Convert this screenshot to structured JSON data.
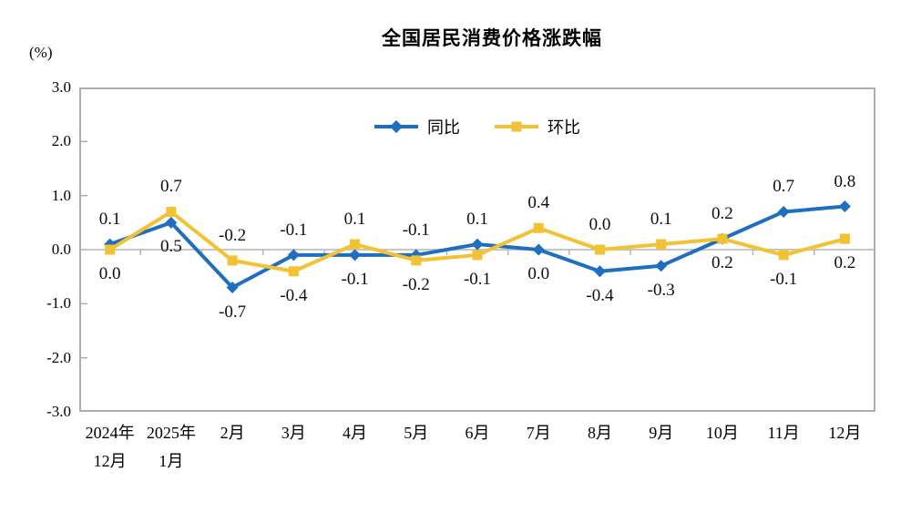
{
  "colors": {
    "yoy_blue": "#1F6FC0",
    "mom_yellow": "#F2C233",
    "plot_border": "#ADADAD",
    "zero_line": "#C7C7C7",
    "tick": "#B5B5B5",
    "label_text": "#0d0d0d"
  },
  "chart_data": {
    "type": "line",
    "title": "全国居民消费价格涨跌幅",
    "ylabel": "(%)",
    "xlabel": "",
    "ylim": [
      -3.0,
      3.0
    ],
    "ytick_labels": [
      "3.0",
      "2.0",
      "1.0",
      "0.0",
      "-1.0",
      "-2.0",
      "-3.0"
    ],
    "ytick_values": [
      3,
      2,
      1,
      0,
      -1,
      -2,
      -3
    ],
    "grid": "zero-line-only",
    "legend_position": "top-center",
    "categories": [
      [
        "2024年",
        "12月"
      ],
      [
        "2025年",
        "1月"
      ],
      [
        "2月"
      ],
      [
        "3月"
      ],
      [
        "4月"
      ],
      [
        "5月"
      ],
      [
        "6月"
      ],
      [
        "7月"
      ],
      [
        "8月"
      ],
      [
        "9月"
      ],
      [
        "10月"
      ],
      [
        "11月"
      ],
      [
        "12月"
      ]
    ],
    "series": [
      {
        "key": "yoy",
        "name": "同比",
        "marker": "diamond",
        "color": "#1F6FC0",
        "values": [
          0.1,
          0.5,
          -0.7,
          -0.1,
          -0.1,
          -0.1,
          0.1,
          0.0,
          -0.4,
          -0.3,
          0.2,
          0.7,
          0.8
        ]
      },
      {
        "key": "mom",
        "name": "环比",
        "marker": "square",
        "color": "#F2C233",
        "values": [
          0.0,
          0.7,
          -0.2,
          -0.4,
          0.1,
          -0.2,
          -0.1,
          0.4,
          0.0,
          0.1,
          0.2,
          -0.1,
          0.2
        ]
      }
    ]
  }
}
